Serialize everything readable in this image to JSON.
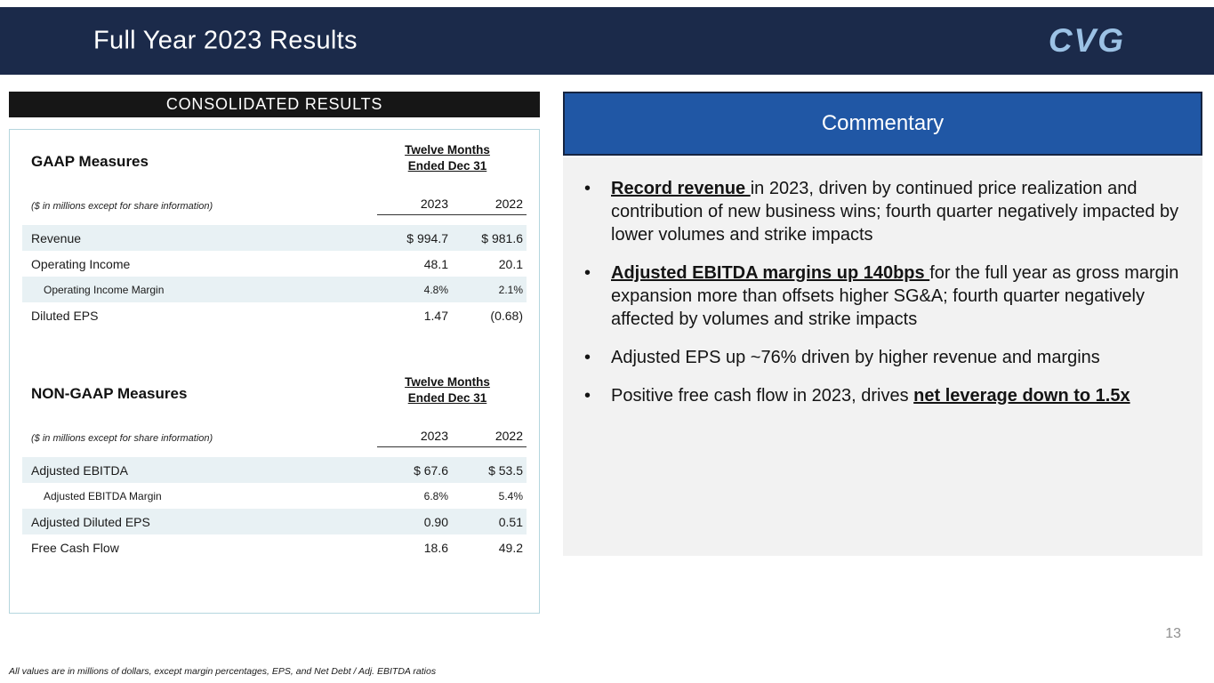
{
  "slide": {
    "title": "Full Year 2023 Results",
    "logo_text": "CVG",
    "page_number": "13",
    "footnote": "All values are in millions of dollars, except margin percentages, EPS, and Net Debt / Adj. EBITDA ratios"
  },
  "colors": {
    "header_bar_navy": "#1b2a4a",
    "commentary_blue": "#2057a5",
    "logo_light_blue": "#9cc2e5",
    "row_shade": "#e8f1f4",
    "results_bar_black": "#161616"
  },
  "consolidated": {
    "header": "CONSOLIDATED RESULTS",
    "gaap": {
      "title": "GAAP Measures",
      "period_line1": "Twelve Months",
      "period_line2": "Ended Dec 31",
      "note": "($ in millions except for share information)",
      "col1": "2023",
      "col2": "2022",
      "rows": [
        {
          "label": "Revenue",
          "y2023": "$ 994.7",
          "y2022": "$ 981.6"
        },
        {
          "label": "Operating Income",
          "y2023": "48.1",
          "y2022": "20.1"
        },
        {
          "label": "Operating Income Margin",
          "y2023": "4.8%",
          "y2022": "2.1%"
        },
        {
          "label": "Diluted EPS",
          "y2023": "1.47",
          "y2022": "(0.68)"
        }
      ]
    },
    "non_gaap": {
      "title": "NON-GAAP Measures",
      "period_line1": "Twelve Months",
      "period_line2": "Ended Dec 31",
      "note": "($ in millions except for share information)",
      "col1": "2023",
      "col2": "2022",
      "rows": [
        {
          "label": "Adjusted EBITDA",
          "y2023": "$ 67.6",
          "y2022": "$ 53.5"
        },
        {
          "label": "Adjusted EBITDA Margin",
          "y2023": "6.8%",
          "y2022": "5.4%"
        },
        {
          "label": "Adjusted Diluted EPS",
          "y2023": "0.90",
          "y2022": "0.51"
        },
        {
          "label": "Free Cash Flow",
          "y2023": "18.6",
          "y2022": "49.2"
        }
      ]
    }
  },
  "commentary": {
    "header": "Commentary",
    "bullet_char": "•",
    "bullets": [
      {
        "pre": "",
        "bold": "Record revenue ",
        "post": "in 2023, driven by continued price realization and contribution of new business wins; fourth quarter negatively impacted by lower volumes and strike impacts"
      },
      {
        "pre": "",
        "bold": "Adjusted EBITDA margins up 140bps ",
        "post": "for the full year as gross margin expansion more than offsets higher SG&A; fourth quarter negatively affected by volumes and strike impacts"
      },
      {
        "pre": "Adjusted EPS up ~76% driven by higher revenue and margins",
        "bold": "",
        "post": ""
      },
      {
        "pre": "Positive free cash flow in 2023, drives ",
        "bold": "net leverage down to 1.5x",
        "post": ""
      }
    ]
  }
}
